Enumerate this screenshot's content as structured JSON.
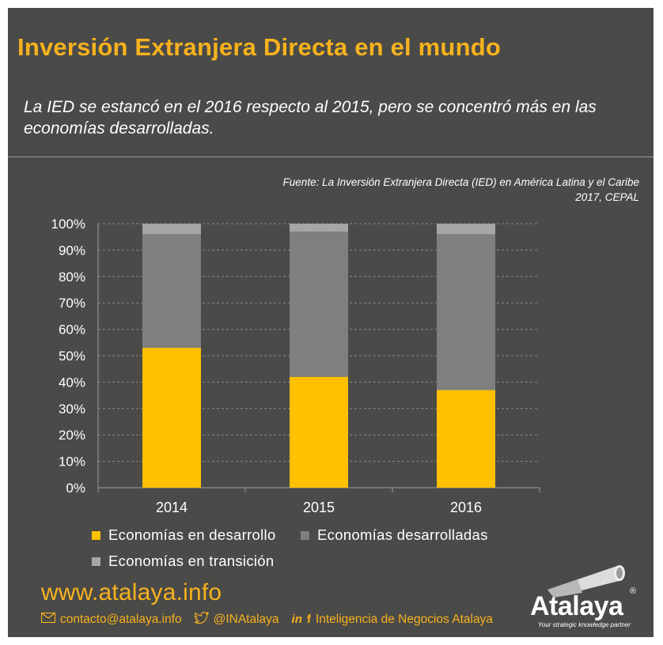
{
  "header": {
    "title": "Inversión Extranjera Directa en el mundo",
    "subtitle": "La IED se estancó en el 2016 respecto al 2015, pero se concentró más en las economías desarrolladas.",
    "source": "Fuente: La Inversión Extranjera Directa (IED) en América Latina y el Caribe 2017, CEPAL"
  },
  "chart_data": {
    "type": "bar",
    "stacked": true,
    "categories": [
      "2014",
      "2015",
      "2016"
    ],
    "series": [
      {
        "name": "Economías en desarrollo",
        "values": [
          53,
          42,
          37
        ],
        "color": "#ffc000"
      },
      {
        "name": "Economías desarrolladas",
        "values": [
          43,
          55,
          59
        ],
        "color": "#7f7f7f"
      },
      {
        "name": "Economías en transición",
        "values": [
          4,
          3,
          4
        ],
        "color": "#a6a6a6"
      }
    ],
    "ylim": [
      0,
      100
    ],
    "yticks": [
      "0%",
      "10%",
      "20%",
      "30%",
      "40%",
      "50%",
      "60%",
      "70%",
      "80%",
      "90%",
      "100%"
    ],
    "grid": true,
    "legend": "bottom"
  },
  "footer": {
    "website": "www.atalaya.info",
    "email": "contacto@atalaya.info",
    "twitter": "@INAtalaya",
    "social_name": "Inteligencia de Negocios Atalaya",
    "email_icon": "envelope-icon",
    "twitter_icon": "twitter-icon",
    "linkedin_icon": "linkedin-icon",
    "facebook_icon": "facebook-icon"
  },
  "logo": {
    "name": "Atalaya",
    "registered": "®",
    "tagline": "Your strategic knowledge partner"
  }
}
